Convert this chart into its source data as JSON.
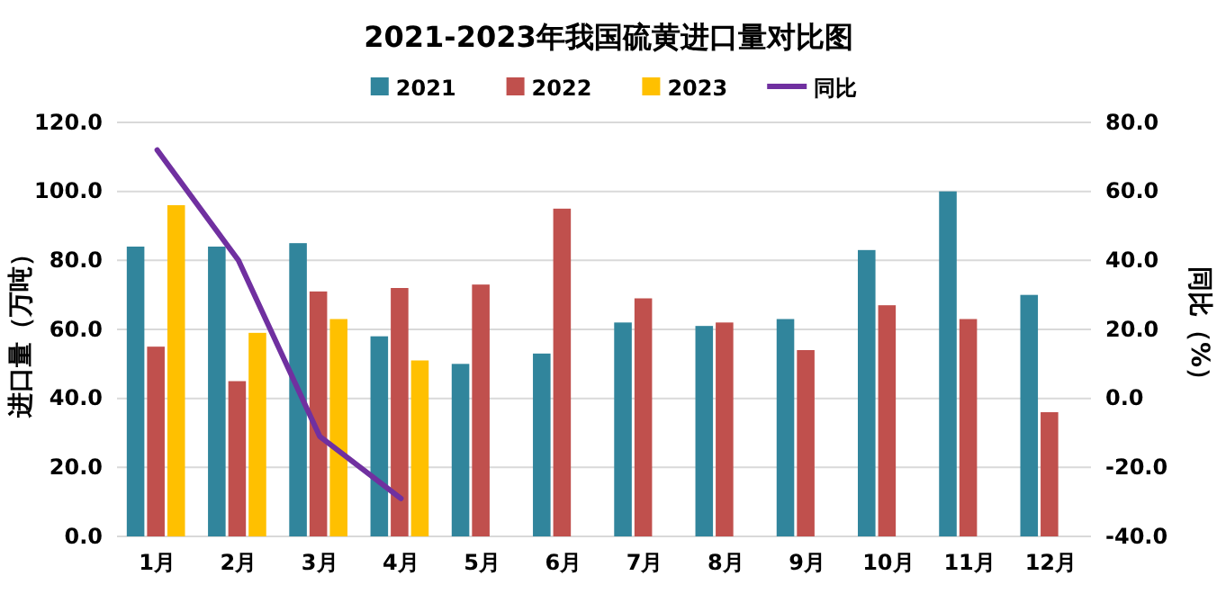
{
  "chart_data": {
    "type": "bar",
    "title": "2021-2023年我国硫黄进口量对比图",
    "ylabel": "进口量（万吨）",
    "y2label": "同比（%）",
    "categories": [
      "1月",
      "2月",
      "3月",
      "4月",
      "5月",
      "6月",
      "7月",
      "8月",
      "9月",
      "10月",
      "11月",
      "12月"
    ],
    "series": [
      {
        "name": "2021",
        "color": "#31859c",
        "values": [
          84,
          84,
          85,
          58,
          50,
          53,
          62,
          61,
          63,
          83,
          100,
          70
        ]
      },
      {
        "name": "2022",
        "color": "#c0504d",
        "values": [
          55,
          45,
          71,
          72,
          73,
          95,
          69,
          62,
          54,
          67,
          63,
          36
        ]
      },
      {
        "name": "2023",
        "color": "#ffc000",
        "values": [
          96,
          59,
          63,
          51,
          null,
          null,
          null,
          null,
          null,
          null,
          null,
          null
        ]
      },
      {
        "name": "同比",
        "type": "line",
        "axis": "y2",
        "color": "#7030a0",
        "values": [
          72,
          40,
          -11,
          -29,
          null,
          null,
          null,
          null,
          null,
          null,
          null,
          null
        ]
      }
    ],
    "ylim": [
      0,
      120
    ],
    "yticks": [
      {
        "value": 0,
        "label": "0.0"
      },
      {
        "value": 20,
        "label": "20.0"
      },
      {
        "value": 40,
        "label": "40.0"
      },
      {
        "value": 60,
        "label": "60.0"
      },
      {
        "value": 80,
        "label": "80.0"
      },
      {
        "value": 100,
        "label": "100.0"
      },
      {
        "value": 120,
        "label": "120.0"
      }
    ],
    "y2lim": [
      -40,
      80
    ],
    "y2ticks": [
      {
        "value": -40,
        "label": "-40.0"
      },
      {
        "value": -20,
        "label": "-20.0"
      },
      {
        "value": 0,
        "label": "0.0"
      },
      {
        "value": 20,
        "label": "20.0"
      },
      {
        "value": 40,
        "label": "40.0"
      },
      {
        "value": 60,
        "label": "60.0"
      },
      {
        "value": 80,
        "label": "80.0"
      }
    ],
    "grid": "y",
    "legend": "top",
    "marker": "none",
    "line_style": "solid"
  }
}
